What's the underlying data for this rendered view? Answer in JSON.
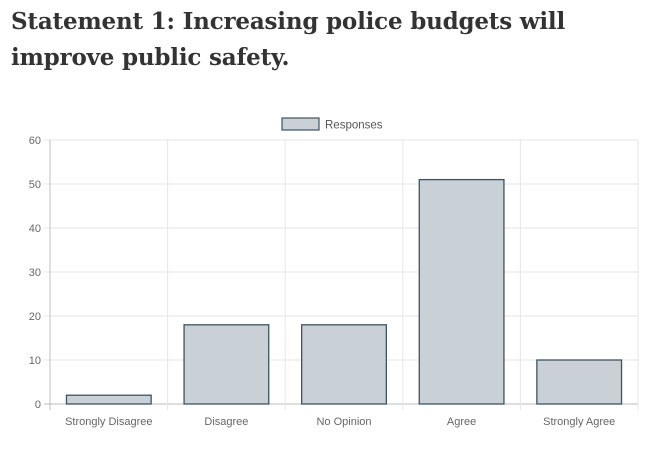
{
  "heading": "Statement 1: Increasing police budgets will improve public safety.",
  "chart_data": {
    "type": "bar",
    "categories": [
      "Strongly Disagree",
      "Disagree",
      "No Opinion",
      "Agree",
      "Strongly Agree"
    ],
    "series": [
      {
        "name": "Responses",
        "values": [
          2,
          18,
          18,
          51,
          10
        ]
      }
    ],
    "ylim": [
      0,
      60
    ],
    "yticks": [
      0,
      10,
      20,
      30,
      40,
      50,
      60
    ],
    "grid": true,
    "legend": "top-center",
    "colors": {
      "bar_fill": "#c9d0d6",
      "bar_stroke": "#3d5361",
      "grid": "#e6e6e6"
    }
  }
}
